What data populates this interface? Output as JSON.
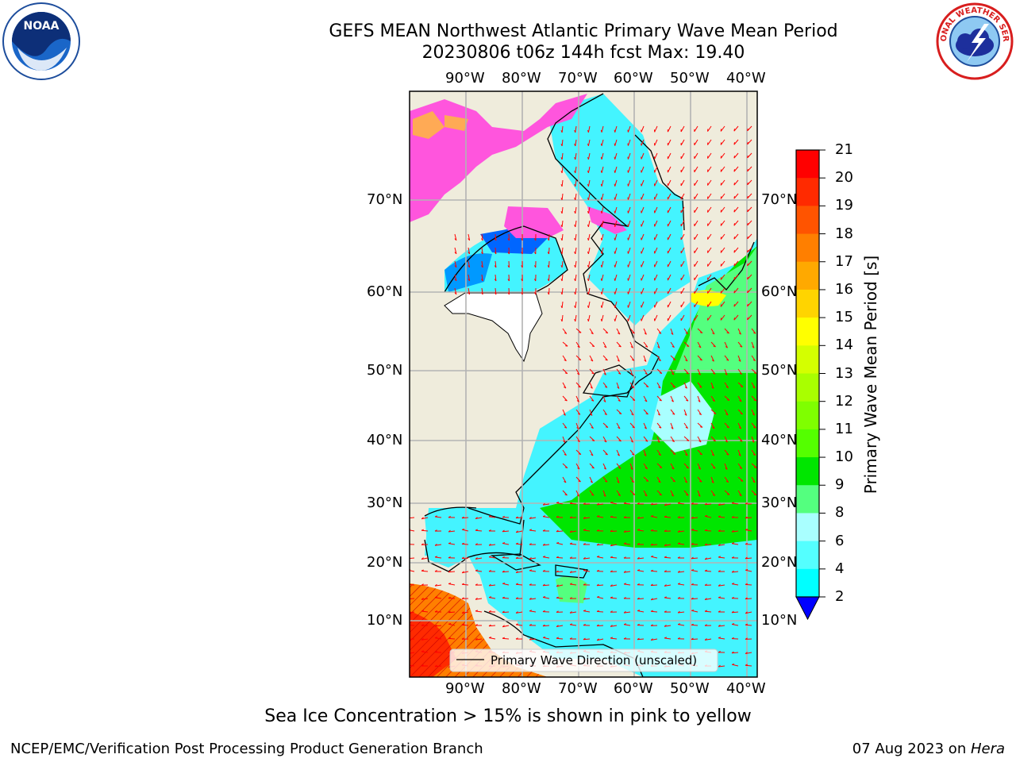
{
  "title": {
    "line1": "GEFS MEAN Northwest Atlantic Primary Wave Mean Period",
    "line2": "20230806 t06z 144h fcst   Max: 19.40"
  },
  "logos": {
    "noaa": {
      "text": "NOAA",
      "icon": "noaa-logo-icon"
    },
    "nws": {
      "text": "NATIONAL WEATHER SERVICE",
      "icon": "nws-logo-icon"
    }
  },
  "map": {
    "lon_ticks": [
      "90°W",
      "80°W",
      "70°W",
      "60°W",
      "50°W",
      "40°W"
    ],
    "lat_ticks": [
      "70°N",
      "60°N",
      "50°N",
      "40°N",
      "30°N",
      "20°N",
      "10°N"
    ],
    "legend_label": "Primary Wave Direction (unscaled)",
    "arrow_color": "#ff0000",
    "ocean_color": "#44f4ff",
    "land_color": "#efecdc"
  },
  "colorbar": {
    "label": "Primary Wave Mean Period [s]",
    "ticks": [
      "21",
      "20",
      "19",
      "18",
      "17",
      "16",
      "15",
      "14",
      "13",
      "12",
      "11",
      "10",
      "9",
      "8",
      "6",
      "4",
      "2"
    ],
    "colors": [
      "#ff0000",
      "#ff2a00",
      "#ff5400",
      "#ff7f00",
      "#ffa900",
      "#ffd400",
      "#ffff00",
      "#d4ff00",
      "#a9ff00",
      "#7fff00",
      "#54ff00",
      "#00e600",
      "#54ff7f",
      "#a9ffff",
      "#54ffff",
      "#00ffff",
      "#0099ff"
    ],
    "under_color": "#0000ff"
  },
  "footer": {
    "note": "Sea Ice Concentration > 15% is shown in pink to yellow",
    "credit": "NCEP/EMC/Verification Post Processing Product Generation Branch",
    "date": "07 Aug 2023 on ",
    "host": "Hera"
  }
}
